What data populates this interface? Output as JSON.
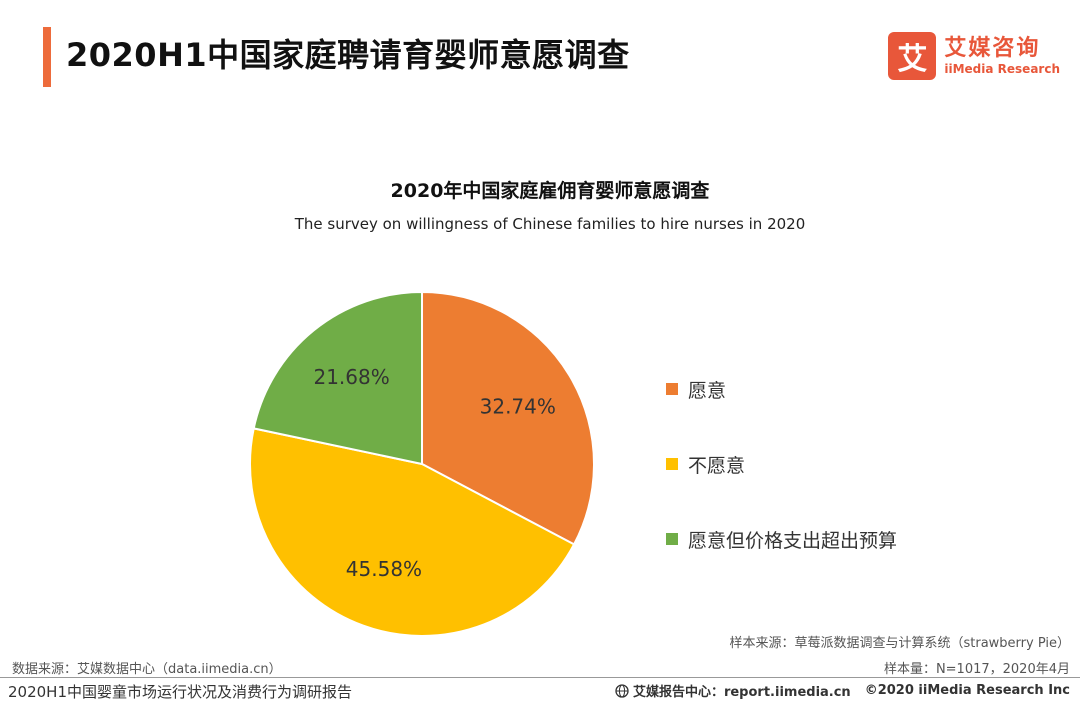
{
  "header": {
    "title": "2020H1中国家庭聘请育婴师意愿调查",
    "accent_color": "#ED6B3B"
  },
  "logo": {
    "mark": "艾",
    "cn": "艾媒咨询",
    "en": "iiMedia Research",
    "color": "#E8573A"
  },
  "chart_data": {
    "type": "pie",
    "title": "2020年中国家庭雇佣育婴师意愿调查",
    "subtitle": "The survey on willingness of Chinese families to hire nurses in 2020",
    "categories": [
      "愿意",
      "不愿意",
      "愿意但价格支出超出预算"
    ],
    "values": [
      32.74,
      45.58,
      21.68
    ],
    "labels": [
      "32.74%",
      "45.58%",
      "21.68%"
    ],
    "colors": [
      "#ED7D31",
      "#FFC000",
      "#70AD47"
    ],
    "legend_position": "right"
  },
  "sources": {
    "sample_source": "样本来源：草莓派数据调查与计算系统（strawberry Pie）",
    "sample_size": "样本量：N=1017，2020年4月",
    "data_source": "数据来源：艾媒数据中心（data.iimedia.cn）"
  },
  "footer": {
    "report_name": "2020H1中国婴童市场运行状况及消费行为调研报告",
    "report_center": "艾媒报告中心：report.iimedia.cn",
    "copyright": "©2020  iiMedia Research  Inc"
  }
}
